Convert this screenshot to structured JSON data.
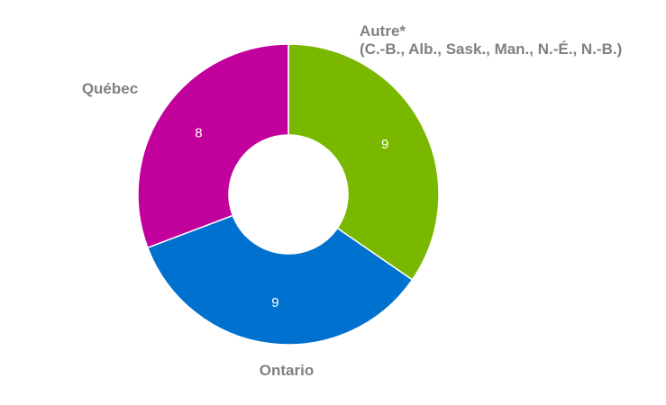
{
  "chart_data": {
    "type": "pie",
    "variant": "donut",
    "categories": [
      "Autre*",
      "Ontario",
      "Québec"
    ],
    "category_labels": [
      [
        "Autre*",
        "(C.-B., Alb., Sask., Man., N.-É., N.-B.)"
      ],
      [
        "Ontario"
      ],
      [
        "Québec"
      ]
    ],
    "values": [
      9,
      9,
      8
    ],
    "value_labels": [
      "9",
      "9",
      "8"
    ],
    "colors": [
      "#7ab800",
      "#0071ce",
      "#c2009b"
    ],
    "label_color": "#808080",
    "value_label_color": "#ffffff",
    "slice_border_color": "#ffffff",
    "legend": "none"
  }
}
